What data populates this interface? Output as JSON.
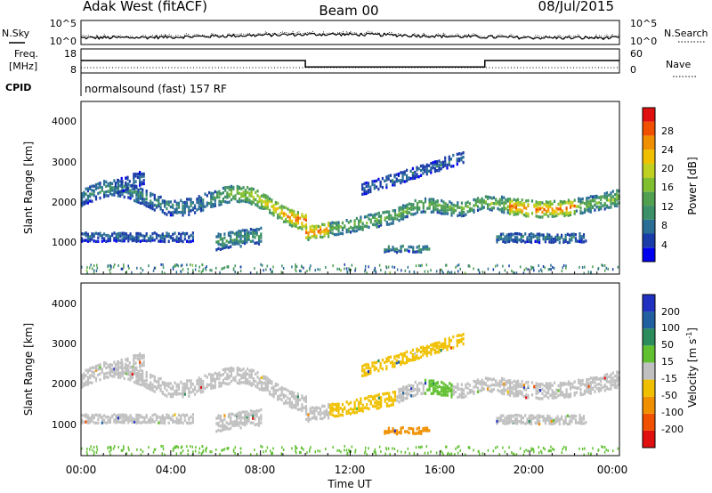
{
  "header": {
    "station": "Adak West (fitACF)",
    "beam": "Beam 00",
    "date": "08/Jul/2015"
  },
  "noise_panel": {
    "left_label": "N.Sky",
    "right_label": "N.Search",
    "left_ticks": [
      "10^5",
      "10^0"
    ],
    "right_ticks": [
      "10^5",
      "10^0"
    ]
  },
  "freq_panel": {
    "left_label_1": "Freq.",
    "left_label_2": "[MHz]",
    "right_label": "Nave",
    "left_ticks": [
      "18",
      "8"
    ],
    "right_ticks": [
      "60",
      "0"
    ]
  },
  "cpid": {
    "label": "CPID",
    "value": "normalsound (fast) 157 RF"
  },
  "power_panel": {
    "ylabel": "Slant Range [km]",
    "y_ticks": [
      "4000",
      "3000",
      "2000",
      "1000"
    ],
    "colorbar": {
      "label": "Power [dB]",
      "ticks": [
        "28",
        "24",
        "20",
        "16",
        "12",
        "8",
        "4"
      ],
      "colors": [
        "#0000f0",
        "#1a3ca8",
        "#2a6e96",
        "#3c9068",
        "#50a050",
        "#80c030",
        "#c0d020",
        "#f0c000",
        "#f09000",
        "#f05000",
        "#e01010"
      ]
    }
  },
  "velocity_panel": {
    "ylabel": "Slant Range [km]",
    "y_ticks": [
      "4000",
      "3000",
      "2000",
      "1000"
    ],
    "colorbar": {
      "label": "Velocity [m s",
      "label_sup": "-1",
      "label_end": "]",
      "ticks": [
        "200",
        "100",
        "50",
        "15",
        "-15",
        "-50",
        "-100",
        "-200"
      ],
      "colors": [
        "#2030c0",
        "#2060a0",
        "#2a8c5a",
        "#60c030",
        "#c0c0c0",
        "#f0c000",
        "#f09000",
        "#f05000",
        "#e01010"
      ]
    }
  },
  "x_axis": {
    "ticks": [
      "00:00",
      "04:00",
      "08:00",
      "12:00",
      "16:00",
      "20:00",
      "00:00"
    ],
    "label": "Time UT"
  },
  "chart_data": {
    "type": "heatmap",
    "title": "Adak West (fitACF)  Beam 00  08/Jul/2015",
    "xlabel": "Time UT",
    "x_range_hours": [
      0,
      24
    ],
    "panels": [
      {
        "name": "N.Sky / N.Search",
        "type": "line",
        "scale": "log",
        "y_range": [
          "10^0",
          "10^5"
        ]
      },
      {
        "name": "Freq. [MHz] / Nave",
        "type": "line",
        "left_range": [
          8,
          18
        ],
        "right_range": [
          0,
          60
        ],
        "freq_segments": [
          {
            "start_hour": 0,
            "end_hour": 10,
            "freq_mhz": 13.2
          },
          {
            "start_hour": 10,
            "end_hour": 18,
            "freq_mhz": 10.5
          },
          {
            "start_hour": 18,
            "end_hour": 24,
            "freq_mhz": 13.2
          }
        ]
      },
      {
        "name": "Power",
        "type": "heatmap",
        "ylabel": "Slant Range [km]",
        "ylim": [
          180,
          4500
        ],
        "colorbar_label": "Power [dB]",
        "colorbar_range": [
          0,
          30
        ]
      },
      {
        "name": "Velocity",
        "type": "heatmap",
        "ylabel": "Slant Range [km]",
        "ylim": [
          180,
          4500
        ],
        "colorbar_label": "Velocity [m s-1]",
        "colorbar_range": [
          -200,
          200
        ]
      }
    ]
  }
}
